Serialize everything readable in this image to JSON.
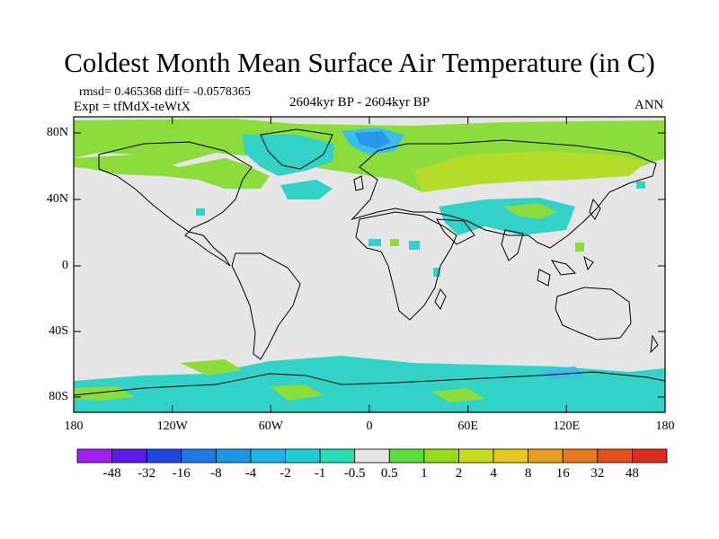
{
  "title": "Coldest Month Mean Surface Air Temperature (in C)",
  "stats_text": "rmsd= 0.465368 diff= -0.0578365",
  "experiment_text": "Expt = tfMdX-teWtX",
  "period_text": "2604kyr BP - 2604kyr BP",
  "season_text": "ANN",
  "axes": {
    "lat_labels": [
      "80N",
      "40N",
      "0",
      "40S",
      "80S"
    ],
    "lon_labels": [
      "180",
      "120W",
      "60W",
      "0",
      "60E",
      "120E",
      "180"
    ]
  },
  "colorbar": {
    "labels": [
      "-48",
      "-32",
      "-16",
      "-8",
      "-4",
      "-2",
      "-1",
      "-0.5",
      "0.5",
      "1",
      "2",
      "4",
      "8",
      "16",
      "32",
      "48"
    ],
    "colors": [
      "#a020f0",
      "#5a1ae8",
      "#1e46e0",
      "#1e78e6",
      "#1e96e6",
      "#1eb4e6",
      "#1ecdd2",
      "#28dcb4",
      "#e6e6e6",
      "#5adc3c",
      "#96dc1e",
      "#c8dc1e",
      "#e6c81e",
      "#e6a01e",
      "#e6781e",
      "#e6501e",
      "#dc2d1e"
    ]
  },
  "map_colors": {
    "neutral": "#e6e6e6",
    "green": "#8cdc3c",
    "yellow_green": "#b4dc28",
    "cyan": "#32d2c8",
    "light_blue": "#3cbeeb",
    "blue": "#2896e6"
  }
}
